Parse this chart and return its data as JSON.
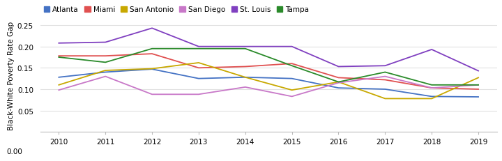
{
  "years": [
    2010,
    2011,
    2012,
    2013,
    2014,
    2015,
    2016,
    2017,
    2018,
    2019
  ],
  "series": {
    "Atlanta": [
      0.128,
      0.14,
      0.147,
      0.125,
      0.128,
      0.125,
      0.103,
      0.1,
      0.083,
      0.082
    ],
    "Miami": [
      0.178,
      0.178,
      0.183,
      0.15,
      0.153,
      0.16,
      0.127,
      0.122,
      0.103,
      0.1
    ],
    "San Antonio": [
      0.11,
      0.144,
      0.148,
      0.162,
      0.128,
      0.098,
      0.117,
      0.078,
      0.078,
      0.127
    ],
    "San Diego": [
      0.098,
      0.13,
      0.088,
      0.088,
      0.105,
      0.083,
      0.115,
      0.13,
      0.103,
      0.11
    ],
    "St. Louis": [
      0.208,
      0.21,
      0.243,
      0.2,
      0.2,
      0.2,
      0.153,
      0.155,
      0.193,
      0.143
    ],
    "Tampa": [
      0.175,
      0.163,
      0.195,
      0.195,
      0.195,
      0.155,
      0.117,
      0.14,
      0.11,
      0.11
    ]
  },
  "colors": {
    "Atlanta": "#4472c4",
    "Miami": "#e05050",
    "San Antonio": "#c8a800",
    "San Diego": "#c878c8",
    "St. Louis": "#8040c0",
    "Tampa": "#2a8a2a"
  },
  "ylabel": "Black-White Poverty Rate Gap",
  "ylim": [
    0.0,
    0.265
  ],
  "yticks": [
    0.05,
    0.1,
    0.15,
    0.2,
    0.25
  ],
  "ytick_labels": [
    "0.05",
    "0.10",
    "0.15",
    "0.20",
    "0.25"
  ],
  "y_extra_label": "0.00",
  "background_color": "#ffffff",
  "legend_order": [
    "Atlanta",
    "Miami",
    "San Antonio",
    "San Diego",
    "St. Louis",
    "Tampa"
  ]
}
